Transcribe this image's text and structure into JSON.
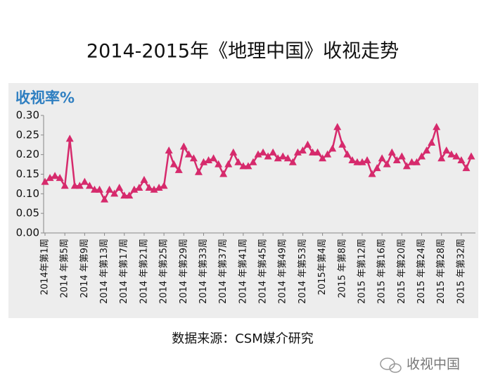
{
  "chart_data": {
    "type": "line",
    "title": "2014-2015年《地理中国》收视走势",
    "y_label": "收视率%",
    "source": "数据来源：CSM媒介研究",
    "watermark": "收视中国",
    "categories": [
      "2014年第1周",
      null,
      null,
      null,
      "2014 年第5周",
      null,
      null,
      null,
      "2014 年第9周",
      null,
      null,
      null,
      "2014 年第13周",
      null,
      null,
      null,
      "2014 年第17周",
      null,
      null,
      null,
      "2014 年第21周",
      null,
      null,
      null,
      "2014 年第25周",
      null,
      null,
      null,
      "2014 年第29周",
      null,
      null,
      null,
      "2014 年第33周",
      null,
      null,
      null,
      "2014 年第37周",
      null,
      null,
      null,
      "2014 年第41周",
      null,
      null,
      null,
      "2014 年第45周",
      null,
      null,
      null,
      "2014 年第49周",
      null,
      null,
      null,
      "2014 年第53周",
      null,
      null,
      null,
      "2015年第4周",
      null,
      null,
      null,
      "2015 年第8周",
      null,
      null,
      null,
      "2015 年第12周",
      null,
      null,
      null,
      "2015 年第16周",
      null,
      null,
      null,
      "2015 年第20周",
      null,
      null,
      null,
      "2015 年第24周",
      null,
      null,
      null,
      "2015 年第28周",
      null,
      null,
      null,
      "2015 年第32周",
      null,
      null
    ],
    "series": [
      {
        "name": "收视率",
        "color": "#d62a6c",
        "values": [
          0.13,
          0.14,
          0.145,
          0.14,
          0.12,
          0.24,
          0.12,
          0.12,
          0.13,
          0.12,
          0.11,
          0.11,
          0.085,
          0.11,
          0.1,
          0.115,
          0.095,
          0.095,
          0.11,
          0.115,
          0.135,
          0.115,
          0.11,
          0.115,
          0.12,
          0.21,
          0.175,
          0.16,
          0.22,
          0.2,
          0.19,
          0.155,
          0.18,
          0.185,
          0.19,
          0.175,
          0.15,
          0.175,
          0.205,
          0.18,
          0.17,
          0.17,
          0.18,
          0.2,
          0.205,
          0.195,
          0.205,
          0.19,
          0.195,
          0.19,
          0.18,
          0.205,
          0.21,
          0.225,
          0.205,
          0.205,
          0.19,
          0.2,
          0.215,
          0.27,
          0.225,
          0.2,
          0.185,
          0.18,
          0.18,
          0.185,
          0.15,
          0.165,
          0.19,
          0.175,
          0.205,
          0.185,
          0.195,
          0.17,
          0.18,
          0.18,
          0.195,
          0.21,
          0.23,
          0.27,
          0.19,
          0.21,
          0.2,
          0.195,
          0.185,
          0.165,
          0.195
        ]
      }
    ],
    "ylim": [
      0,
      0.3
    ],
    "yticks": [
      {
        "value": 0,
        "label": "0.00"
      },
      {
        "value": 0.05,
        "label": "0.05"
      },
      {
        "value": 0.1,
        "label": "0.10"
      },
      {
        "value": 0.15,
        "label": "0.15"
      },
      {
        "value": 0.2,
        "label": "0.20"
      },
      {
        "value": 0.25,
        "label": "0.25"
      },
      {
        "value": 0.3,
        "label": "0.30"
      }
    ],
    "grid": false
  }
}
